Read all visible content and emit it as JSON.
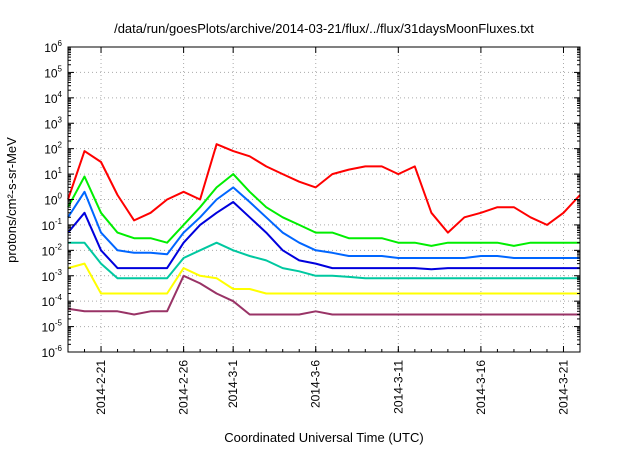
{
  "chart_data": {
    "type": "line",
    "title": "/data/run/goesPlots/archive/2014-03-21/flux/../flux/31daysMoonFluxes.txt",
    "xlabel": "Coordinated Universal Time (UTC)",
    "ylabel": "protons/cm²-s-sr-MeV",
    "yscale": "log",
    "ylim": [
      1e-06,
      1000000.0
    ],
    "xlim": [
      "2014-02-19",
      "2014-03-22"
    ],
    "grid": true,
    "y_ticks": [
      {
        "base": "10",
        "exp": "6"
      },
      {
        "base": "10",
        "exp": "5"
      },
      {
        "base": "10",
        "exp": "4"
      },
      {
        "base": "10",
        "exp": "3"
      },
      {
        "base": "10",
        "exp": "2"
      },
      {
        "base": "10",
        "exp": "1"
      },
      {
        "base": "10",
        "exp": "0"
      },
      {
        "base": "10",
        "exp": "-1"
      },
      {
        "base": "10",
        "exp": "-2"
      },
      {
        "base": "10",
        "exp": "-3"
      },
      {
        "base": "10",
        "exp": "-4"
      },
      {
        "base": "10",
        "exp": "-5"
      },
      {
        "base": "10",
        "exp": "-6"
      }
    ],
    "x_ticks": [
      "2014-2-21",
      "2014-2-26",
      "2014-3-1",
      "2014-3-6",
      "2014-3-11",
      "2014-3-16",
      "2014-3-21"
    ],
    "series": [
      {
        "color": "#ff0000",
        "x": [
          "2014-02-19",
          "2014-02-20",
          "2014-02-21",
          "2014-02-22",
          "2014-02-23",
          "2014-02-24",
          "2014-02-25",
          "2014-02-26",
          "2014-02-27",
          "2014-02-28",
          "2014-03-01",
          "2014-03-02",
          "2014-03-03",
          "2014-03-04",
          "2014-03-05",
          "2014-03-06",
          "2014-03-07",
          "2014-03-08",
          "2014-03-09",
          "2014-03-10",
          "2014-03-11",
          "2014-03-12",
          "2014-03-13",
          "2014-03-14",
          "2014-03-15",
          "2014-03-16",
          "2014-03-17",
          "2014-03-18",
          "2014-03-19",
          "2014-03-20",
          "2014-03-21",
          "2014-03-22"
        ],
        "y": [
          1.0,
          80,
          30,
          1.5,
          0.15,
          0.3,
          1.0,
          2.0,
          1.0,
          150,
          80,
          50,
          20,
          10,
          5,
          3,
          10,
          15,
          20,
          20,
          10,
          20,
          0.3,
          0.05,
          0.2,
          0.3,
          0.5,
          0.5,
          0.2,
          0.1,
          0.3,
          1.5
        ]
      },
      {
        "color": "#00ee00",
        "x": [
          "2014-02-19",
          "2014-02-20",
          "2014-02-21",
          "2014-02-22",
          "2014-02-23",
          "2014-02-24",
          "2014-02-25",
          "2014-02-26",
          "2014-02-27",
          "2014-02-28",
          "2014-03-01",
          "2014-03-02",
          "2014-03-03",
          "2014-03-04",
          "2014-03-05",
          "2014-03-06",
          "2014-03-07",
          "2014-03-08",
          "2014-03-09",
          "2014-03-10",
          "2014-03-11",
          "2014-03-12",
          "2014-03-13",
          "2014-03-14",
          "2014-03-15",
          "2014-03-16",
          "2014-03-17",
          "2014-03-18",
          "2014-03-19",
          "2014-03-20",
          "2014-03-21",
          "2014-03-22"
        ],
        "y": [
          0.5,
          8,
          0.3,
          0.05,
          0.03,
          0.03,
          0.02,
          0.1,
          0.5,
          3,
          10,
          2,
          0.5,
          0.2,
          0.1,
          0.05,
          0.05,
          0.03,
          0.03,
          0.03,
          0.02,
          0.02,
          0.015,
          0.02,
          0.02,
          0.02,
          0.02,
          0.015,
          0.02,
          0.02,
          0.02,
          0.02
        ]
      },
      {
        "color": "#0066ff",
        "x": [
          "2014-02-19",
          "2014-02-20",
          "2014-02-21",
          "2014-02-22",
          "2014-02-23",
          "2014-02-24",
          "2014-02-25",
          "2014-02-26",
          "2014-02-27",
          "2014-02-28",
          "2014-03-01",
          "2014-03-02",
          "2014-03-03",
          "2014-03-04",
          "2014-03-05",
          "2014-03-06",
          "2014-03-07",
          "2014-03-08",
          "2014-03-09",
          "2014-03-10",
          "2014-03-11",
          "2014-03-12",
          "2014-03-13",
          "2014-03-14",
          "2014-03-15",
          "2014-03-16",
          "2014-03-17",
          "2014-03-18",
          "2014-03-19",
          "2014-03-20",
          "2014-03-21",
          "2014-03-22"
        ],
        "y": [
          0.2,
          2,
          0.05,
          0.01,
          0.008,
          0.008,
          0.007,
          0.05,
          0.2,
          1,
          3,
          0.8,
          0.2,
          0.05,
          0.02,
          0.01,
          0.008,
          0.006,
          0.006,
          0.006,
          0.005,
          0.005,
          0.005,
          0.005,
          0.005,
          0.006,
          0.006,
          0.005,
          0.005,
          0.005,
          0.005,
          0.005
        ]
      },
      {
        "color": "#0000dd",
        "x": [
          "2014-02-19",
          "2014-02-20",
          "2014-02-21",
          "2014-02-22",
          "2014-02-23",
          "2014-02-24",
          "2014-02-25",
          "2014-02-26",
          "2014-02-27",
          "2014-02-28",
          "2014-03-01",
          "2014-03-02",
          "2014-03-03",
          "2014-03-04",
          "2014-03-05",
          "2014-03-06",
          "2014-03-07",
          "2014-03-08",
          "2014-03-09",
          "2014-03-10",
          "2014-03-11",
          "2014-03-12",
          "2014-03-13",
          "2014-03-14",
          "2014-03-15",
          "2014-03-16",
          "2014-03-17",
          "2014-03-18",
          "2014-03-19",
          "2014-03-20",
          "2014-03-21",
          "2014-03-22"
        ],
        "y": [
          0.05,
          0.3,
          0.01,
          0.002,
          0.002,
          0.002,
          0.002,
          0.02,
          0.1,
          0.3,
          0.8,
          0.2,
          0.05,
          0.01,
          0.004,
          0.003,
          0.002,
          0.002,
          0.002,
          0.002,
          0.002,
          0.002,
          0.0018,
          0.002,
          0.002,
          0.002,
          0.002,
          0.002,
          0.002,
          0.002,
          0.002,
          0.002
        ]
      },
      {
        "color": "#00c8a0",
        "x": [
          "2014-02-19",
          "2014-02-20",
          "2014-02-21",
          "2014-02-22",
          "2014-02-23",
          "2014-02-24",
          "2014-02-25",
          "2014-02-26",
          "2014-02-27",
          "2014-02-28",
          "2014-03-01",
          "2014-03-02",
          "2014-03-03",
          "2014-03-04",
          "2014-03-05",
          "2014-03-06",
          "2014-03-07",
          "2014-03-08",
          "2014-03-09",
          "2014-03-10",
          "2014-03-11",
          "2014-03-12",
          "2014-03-13",
          "2014-03-14",
          "2014-03-15",
          "2014-03-16",
          "2014-03-17",
          "2014-03-18",
          "2014-03-19",
          "2014-03-20",
          "2014-03-21",
          "2014-03-22"
        ],
        "y": [
          0.02,
          0.02,
          0.003,
          0.0008,
          0.0008,
          0.0008,
          0.0008,
          0.005,
          0.01,
          0.02,
          0.01,
          0.006,
          0.004,
          0.002,
          0.0015,
          0.001,
          0.001,
          0.0009,
          0.0008,
          0.0008,
          0.0008,
          0.0008,
          0.0008,
          0.0008,
          0.0008,
          0.0008,
          0.0008,
          0.0008,
          0.0008,
          0.0008,
          0.0008,
          0.0008
        ]
      },
      {
        "color": "#ffff00",
        "x": [
          "2014-02-19",
          "2014-02-20",
          "2014-02-21",
          "2014-02-22",
          "2014-02-23",
          "2014-02-24",
          "2014-02-25",
          "2014-02-26",
          "2014-02-27",
          "2014-02-28",
          "2014-03-01",
          "2014-03-02",
          "2014-03-03",
          "2014-03-04",
          "2014-03-05",
          "2014-03-06",
          "2014-03-07",
          "2014-03-08",
          "2014-03-09",
          "2014-03-10",
          "2014-03-11",
          "2014-03-12",
          "2014-03-13",
          "2014-03-14",
          "2014-03-15",
          "2014-03-16",
          "2014-03-17",
          "2014-03-18",
          "2014-03-19",
          "2014-03-20",
          "2014-03-21",
          "2014-03-22"
        ],
        "y": [
          0.002,
          0.003,
          0.0002,
          0.0002,
          0.0002,
          0.0002,
          0.0002,
          0.002,
          0.001,
          0.0008,
          0.0003,
          0.0003,
          0.0002,
          0.0002,
          0.0002,
          0.0002,
          0.0002,
          0.0002,
          0.0002,
          0.0002,
          0.0002,
          0.0002,
          0.0002,
          0.0002,
          0.0002,
          0.0002,
          0.0002,
          0.0002,
          0.0002,
          0.0002,
          0.0002,
          0.0002
        ]
      },
      {
        "color": "#993366",
        "x": [
          "2014-02-19",
          "2014-02-20",
          "2014-02-21",
          "2014-02-22",
          "2014-02-23",
          "2014-02-24",
          "2014-02-25",
          "2014-02-26",
          "2014-02-27",
          "2014-02-28",
          "2014-03-01",
          "2014-03-02",
          "2014-03-03",
          "2014-03-04",
          "2014-03-05",
          "2014-03-06",
          "2014-03-07",
          "2014-03-08",
          "2014-03-09",
          "2014-03-10",
          "2014-03-11",
          "2014-03-12",
          "2014-03-13",
          "2014-03-14",
          "2014-03-15",
          "2014-03-16",
          "2014-03-17",
          "2014-03-18",
          "2014-03-19",
          "2014-03-20",
          "2014-03-21",
          "2014-03-22"
        ],
        "y": [
          5e-05,
          4e-05,
          4e-05,
          4e-05,
          3e-05,
          4e-05,
          4e-05,
          0.001,
          0.0005,
          0.0002,
          0.0001,
          3e-05,
          3e-05,
          3e-05,
          3e-05,
          4e-05,
          3e-05,
          3e-05,
          3e-05,
          3e-05,
          3e-05,
          3e-05,
          3e-05,
          3e-05,
          3e-05,
          3e-05,
          3e-05,
          3e-05,
          3e-05,
          3e-05,
          3e-05,
          3e-05
        ]
      }
    ]
  }
}
